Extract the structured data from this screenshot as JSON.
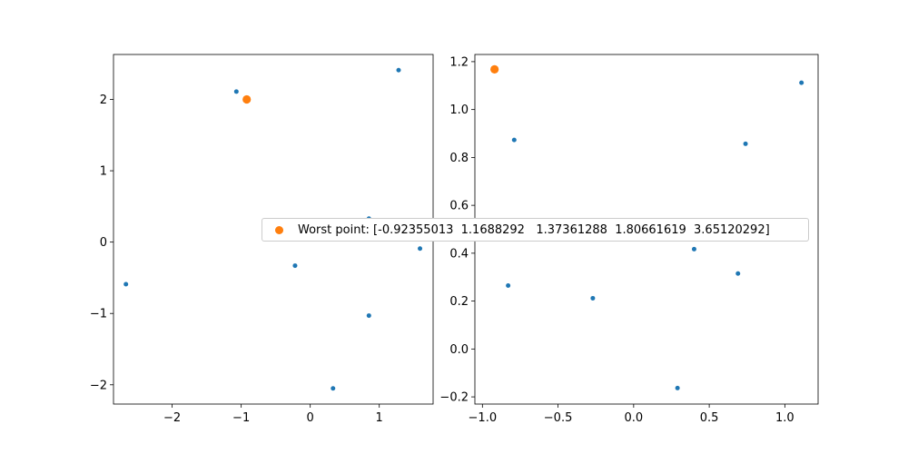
{
  "chart_data": [
    {
      "type": "scatter",
      "grid": false,
      "xlim": [
        -2.85,
        1.78
      ],
      "ylim": [
        -2.27,
        2.63
      ],
      "xticks": [
        -2,
        -1,
        0,
        1
      ],
      "yticks": [
        -2,
        -1,
        0,
        1,
        2
      ],
      "xtick_labels": [
        "−2",
        "−1",
        "0",
        "1"
      ],
      "ytick_labels": [
        "−2",
        "−1",
        "0",
        "1",
        "2"
      ],
      "series": [
        {
          "color": "#1f77b4",
          "size": "small",
          "points": [
            {
              "x": -2.67,
              "y": -0.59
            },
            {
              "x": -1.07,
              "y": 2.11
            },
            {
              "x": 1.28,
              "y": 2.41
            },
            {
              "x": 0.85,
              "y": 0.33
            },
            {
              "x": 1.59,
              "y": -0.09
            },
            {
              "x": -0.22,
              "y": -0.33
            },
            {
              "x": 0.85,
              "y": -1.03
            },
            {
              "x": 0.33,
              "y": -2.05
            }
          ]
        },
        {
          "name": "Worst point: [-0.92355013  1.1688292   1.37361288  1.80661619  3.65120292]",
          "color": "#ff7f0e",
          "size": "large",
          "points": [
            {
              "x": -0.92,
              "y": 2.0
            }
          ]
        }
      ]
    },
    {
      "type": "scatter",
      "grid": false,
      "xlim": [
        -1.05,
        1.22
      ],
      "ylim": [
        -0.23,
        1.23
      ],
      "xticks": [
        -1.0,
        -0.5,
        0.0,
        0.5,
        1.0
      ],
      "yticks": [
        -0.2,
        0.0,
        0.2,
        0.4,
        0.6,
        0.8,
        1.0,
        1.2
      ],
      "xtick_labels": [
        "−1.0",
        "−0.5",
        "0.0",
        "0.5",
        "1.0"
      ],
      "ytick_labels": [
        "−0.2",
        "0.0",
        "0.2",
        "0.4",
        "0.6",
        "0.8",
        "1.0",
        "1.2"
      ],
      "series": [
        {
          "color": "#1f77b4",
          "size": "small",
          "points": [
            {
              "x": -0.83,
              "y": 0.265
            },
            {
              "x": -0.79,
              "y": 0.873
            },
            {
              "x": -0.27,
              "y": 0.212
            },
            {
              "x": 0.29,
              "y": -0.163
            },
            {
              "x": 0.4,
              "y": 0.417
            },
            {
              "x": 0.69,
              "y": 0.315
            },
            {
              "x": 0.74,
              "y": 0.857
            },
            {
              "x": 1.11,
              "y": 1.112
            }
          ]
        },
        {
          "name": "Worst point: [-0.92355013  1.1688292   1.37361288  1.80661619  3.65120292]",
          "color": "#ff7f0e",
          "size": "large",
          "points": [
            {
              "x": -0.92,
              "y": 1.168
            }
          ]
        }
      ]
    }
  ],
  "legend": {
    "placement": "center",
    "label": "Worst point: [-0.92355013  1.1688292   1.37361288  1.80661619  3.65120292]",
    "marker_color": "#ff7f0e"
  }
}
